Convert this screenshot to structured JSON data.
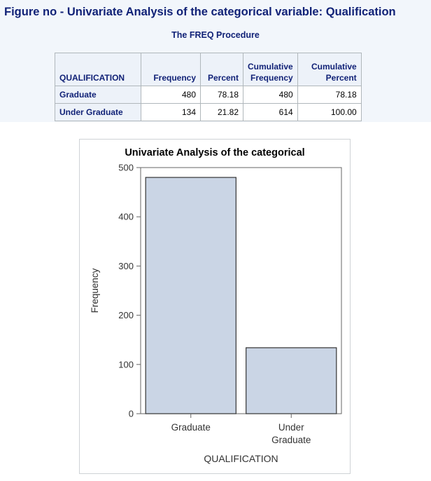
{
  "figure_title": "Figure no - Univariate Analysis of the categorical variable: Qualification",
  "procedure_title": "The FREQ Procedure",
  "table": {
    "headers": {
      "qualification": "QUALIFICATION",
      "frequency": "Frequency",
      "percent": "Percent",
      "cum_freq_1": "Cumulative",
      "cum_freq_2": "Frequency",
      "cum_pct_1": "Cumulative",
      "cum_pct_2": "Percent"
    },
    "rows": [
      {
        "label": "Graduate",
        "frequency": "480",
        "percent": "78.18",
        "cum_frequency": "480",
        "cum_percent": "78.18"
      },
      {
        "label": "Under Graduate",
        "frequency": "134",
        "percent": "21.82",
        "cum_frequency": "614",
        "cum_percent": "100.00"
      }
    ]
  },
  "colors": {
    "bar_fill": "#cad5e5",
    "bar_stroke": "#333333",
    "title_blue": "#112277",
    "panel_bg": "#f2f6fb"
  },
  "chart_data": {
    "type": "bar",
    "title": "Univariate Analysis of the categorical",
    "xlabel": "QUALIFICATION",
    "ylabel": "Frequency",
    "categories": [
      "Graduate",
      "Under Graduate"
    ],
    "category_label_lines": [
      [
        "Graduate"
      ],
      [
        "Under",
        "Graduate"
      ]
    ],
    "values": [
      480,
      134
    ],
    "ylim": [
      0,
      500
    ],
    "yticks": [
      "0",
      "100",
      "200",
      "300",
      "400",
      "500"
    ],
    "grid": false,
    "legend": "none"
  }
}
